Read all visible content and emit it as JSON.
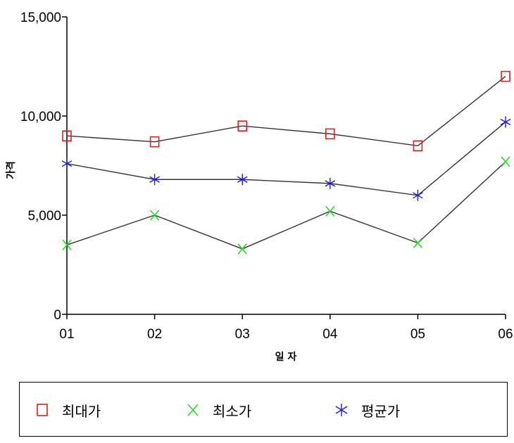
{
  "chart_data": {
    "type": "line",
    "categories": [
      "01",
      "02",
      "03",
      "04",
      "05",
      "06"
    ],
    "xlabel": "일 자",
    "ylabel": "가격",
    "ylim": [
      0,
      15000
    ],
    "yticks": [
      0,
      5000,
      10000,
      15000
    ],
    "ytick_labels": [
      "0",
      "5,000",
      "10,000",
      "15,000"
    ],
    "grid": false,
    "legend_position": "bottom",
    "series": [
      {
        "name": "최대가",
        "marker": "square",
        "color": "#e02020",
        "values": [
          9000,
          8700,
          9500,
          9100,
          8500,
          12000
        ]
      },
      {
        "name": "최소가",
        "marker": "x",
        "color": "#22dd22",
        "values": [
          3500,
          5000,
          3300,
          5200,
          3600,
          7700
        ]
      },
      {
        "name": "평균가",
        "marker": "asterisk",
        "color": "#1a1ae0",
        "values": [
          7600,
          6800,
          6800,
          6600,
          6000,
          9700
        ]
      }
    ],
    "line_color": "#333333"
  }
}
